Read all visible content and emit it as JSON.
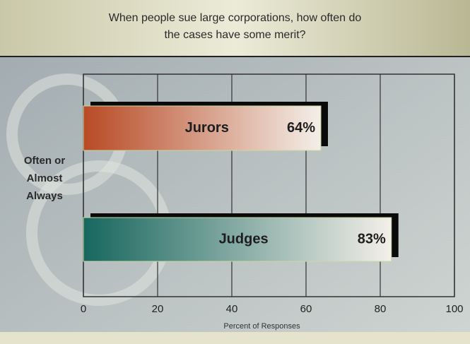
{
  "chart_data": {
    "type": "hbar",
    "title": "When people sue large corporations, how often do the cases have some merit?",
    "ylabel": "Often or Almost Always",
    "xlabel": "Percent of Responses",
    "categories": [
      "Jurors",
      "Judges"
    ],
    "values": [
      64,
      83
    ],
    "value_labels": [
      "64%",
      "83%"
    ],
    "colors": [
      "#b84a25",
      "#17675f"
    ],
    "xlim": [
      0,
      100
    ],
    "xticks": [
      0,
      20,
      40,
      60,
      80,
      100
    ],
    "grid": true
  }
}
